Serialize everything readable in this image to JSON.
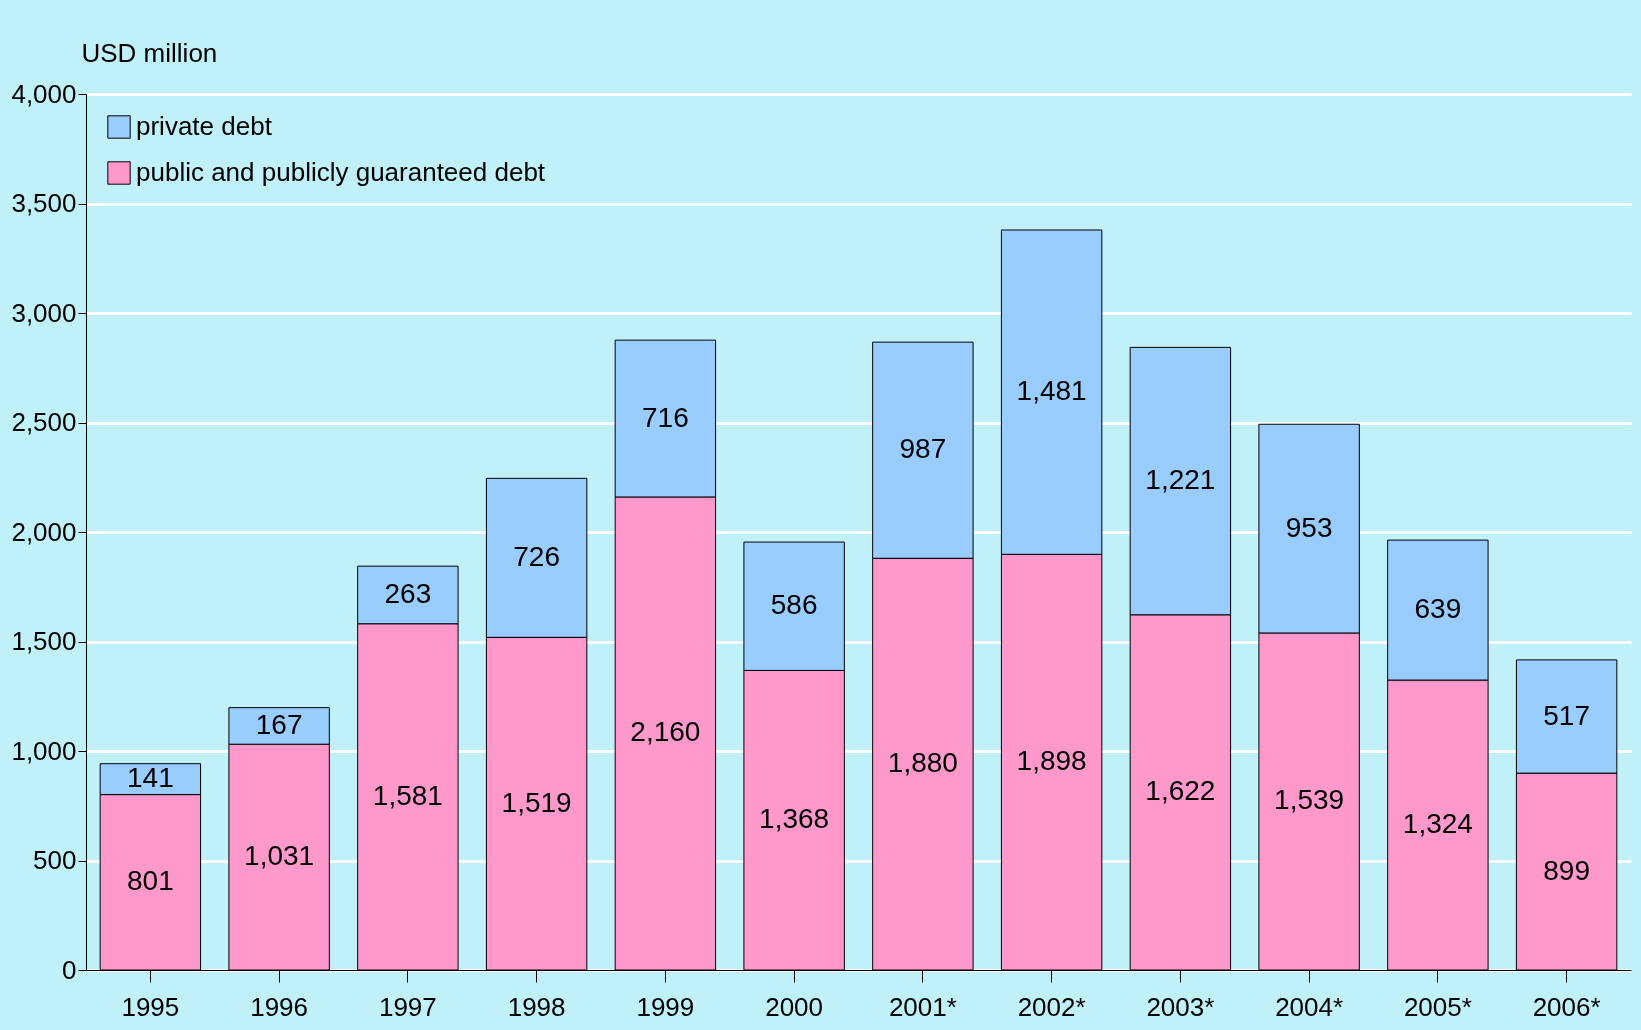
{
  "chart_data": {
    "type": "bar",
    "stacked": true,
    "ylabel": "USD million",
    "categories": [
      "1995",
      "1996",
      "1997",
      "1998",
      "1999",
      "2000",
      "2001*",
      "2002*",
      "2003*",
      "2004*",
      "2005*",
      "2006*"
    ],
    "series": [
      {
        "name": "public and publicly guaranteed debt",
        "color": "#ff99cc",
        "values": [
          801,
          1031,
          1581,
          1519,
          2160,
          1368,
          1880,
          1898,
          1622,
          1539,
          1324,
          899
        ],
        "value_labels": [
          "801",
          "1,031",
          "1,581",
          "1,519",
          "2,160",
          "1,368",
          "1,880",
          "1,898",
          "1,622",
          "1,539",
          "1,324",
          "899"
        ]
      },
      {
        "name": "private debt",
        "color": "#99ccff",
        "values": [
          141,
          167,
          263,
          726,
          716,
          586,
          987,
          1481,
          1221,
          953,
          639,
          517
        ],
        "value_labels": [
          "141",
          "167",
          "263",
          "726",
          "716",
          "586",
          "987",
          "1,481",
          "1,221",
          "953",
          "639",
          "517"
        ]
      }
    ],
    "ylim": [
      0,
      4000
    ],
    "yticks": [
      0,
      {
        "value": 500,
        "label": "500"
      },
      {
        "value": 1000,
        "label": "1,000"
      },
      {
        "value": 1500,
        "label": "1,500"
      },
      {
        "value": 2000,
        "label": "2,000"
      },
      {
        "value": 2500,
        "label": "2,500"
      },
      {
        "value": 3000,
        "label": "3,000"
      },
      {
        "value": 3500,
        "label": "3,500"
      },
      {
        "value": 4000,
        "label": "4,000"
      }
    ],
    "grid": "y",
    "legend": "top left"
  }
}
